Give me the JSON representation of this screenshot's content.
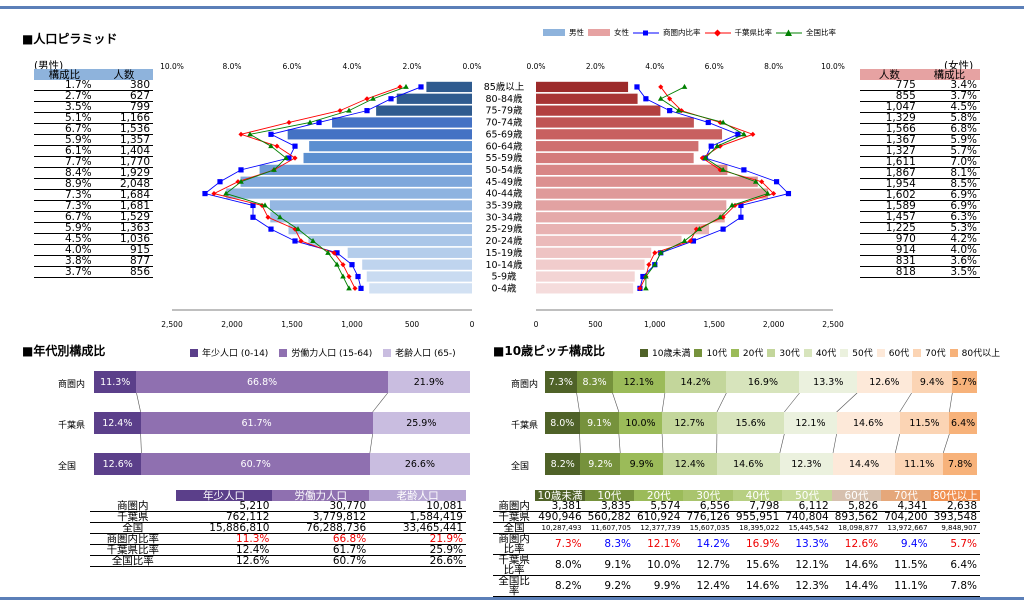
{
  "pyramid": {
    "title": "■人口ピラミッド",
    "male_label": "(男性)",
    "female_label": "(女性)",
    "male_cols": [
      "構成比",
      "人数"
    ],
    "female_cols": [
      "人数",
      "構成比"
    ],
    "legend": [
      "男性",
      "女性",
      "商圏内比率",
      "千葉県比率",
      "全国比率"
    ],
    "ages": [
      "85歳以上",
      "80-84歳",
      "75-79歳",
      "70-74歳",
      "65-69歳",
      "60-64歳",
      "55-59歳",
      "50-54歳",
      "45-49歳",
      "40-44歳",
      "35-39歳",
      "30-34歳",
      "25-29歳",
      "20-24歳",
      "15-19歳",
      "10-14歳",
      "5-9歳",
      "0-4歳"
    ],
    "male_ratio": [
      "1.7%",
      "2.7%",
      "3.5%",
      "5.1%",
      "6.7%",
      "5.9%",
      "6.1%",
      "7.7%",
      "8.4%",
      "8.9%",
      "7.3%",
      "7.3%",
      "6.7%",
      "5.9%",
      "4.5%",
      "4.0%",
      "3.8%",
      "3.7%"
    ],
    "male_count": [
      "380",
      "627",
      "799",
      "1,166",
      "1,536",
      "1,357",
      "1,404",
      "1,770",
      "1,929",
      "2,048",
      "1,684",
      "1,681",
      "1,529",
      "1,363",
      "1,036",
      "915",
      "877",
      "856"
    ],
    "female_count": [
      "775",
      "855",
      "1,047",
      "1,329",
      "1,566",
      "1,367",
      "1,327",
      "1,611",
      "1,867",
      "1,954",
      "1,602",
      "1,589",
      "1,457",
      "1,225",
      "970",
      "914",
      "831",
      "818"
    ],
    "female_ratio": [
      "3.4%",
      "3.7%",
      "4.5%",
      "5.8%",
      "6.8%",
      "5.9%",
      "5.7%",
      "7.0%",
      "8.1%",
      "8.5%",
      "6.9%",
      "6.9%",
      "6.3%",
      "5.3%",
      "4.2%",
      "4.0%",
      "3.6%",
      "3.5%"
    ],
    "top_ticks_left": [
      "10.0%",
      "8.0%",
      "6.0%",
      "4.0%",
      "2.0%",
      "0.0%"
    ],
    "top_ticks_right": [
      "0.0%",
      "2.0%",
      "4.0%",
      "6.0%",
      "8.0%",
      "10.0%"
    ],
    "bottom_ticks_left": [
      "2,500",
      "2,000",
      "1,500",
      "1,000",
      "500",
      "0"
    ],
    "bottom_ticks_right": [
      "0",
      "500",
      "1,000",
      "1,500",
      "2,000",
      "2,500"
    ]
  },
  "chart_data": [
    {
      "type": "bar",
      "title": "人口ピラミッド 男性",
      "categories": [
        "85歳以上",
        "80-84歳",
        "75-79歳",
        "70-74歳",
        "65-69歳",
        "60-64歳",
        "55-59歳",
        "50-54歳",
        "45-49歳",
        "40-44歳",
        "35-39歳",
        "30-34歳",
        "25-29歳",
        "20-24歳",
        "15-19歳",
        "10-14歳",
        "5-9歳",
        "0-4歳"
      ],
      "series": [
        {
          "name": "男性",
          "values": [
            380,
            627,
            799,
            1166,
            1536,
            1357,
            1404,
            1770,
            1929,
            2048,
            1684,
            1681,
            1529,
            1363,
            1036,
            915,
            877,
            856
          ]
        },
        {
          "name": "商圏内比率",
          "values": [
            1.7,
            2.7,
            3.5,
            5.1,
            6.7,
            5.9,
            6.1,
            7.7,
            8.4,
            8.9,
            7.3,
            7.3,
            6.7,
            5.9,
            4.5,
            4.0,
            3.8,
            3.7
          ]
        },
        {
          "name": "千葉県比率",
          "values": [
            2.4,
            3.5,
            4.4,
            6.1,
            7.7,
            6.5,
            5.9,
            6.6,
            7.8,
            8.6,
            7.0,
            6.8,
            5.9,
            5.7,
            4.6,
            4.3,
            4.1,
            3.9
          ]
        },
        {
          "name": "全国比率",
          "values": [
            2.2,
            3.3,
            4.1,
            5.4,
            7.4,
            6.7,
            6.2,
            6.6,
            7.7,
            8.2,
            6.9,
            6.4,
            5.8,
            5.3,
            4.8,
            4.5,
            4.3,
            4.1
          ]
        }
      ],
      "xlim": [
        2500,
        0
      ]
    },
    {
      "type": "bar",
      "title": "人口ピラミッド 女性",
      "categories": [
        "85歳以上",
        "80-84歳",
        "75-79歳",
        "70-74歳",
        "65-69歳",
        "60-64歳",
        "55-59歳",
        "50-54歳",
        "45-49歳",
        "40-44歳",
        "35-39歳",
        "30-34歳",
        "25-29歳",
        "20-24歳",
        "15-19歳",
        "10-14歳",
        "5-9歳",
        "0-4歳"
      ],
      "series": [
        {
          "name": "女性",
          "values": [
            775,
            855,
            1047,
            1329,
            1566,
            1367,
            1327,
            1611,
            1867,
            1954,
            1602,
            1589,
            1457,
            1225,
            970,
            914,
            831,
            818
          ]
        },
        {
          "name": "商圏内比率",
          "values": [
            3.4,
            3.7,
            4.5,
            5.8,
            6.8,
            5.9,
            5.7,
            7.0,
            8.1,
            8.5,
            6.9,
            6.9,
            6.3,
            5.3,
            4.2,
            4.0,
            3.6,
            3.5
          ]
        },
        {
          "name": "千葉県比率",
          "values": [
            4.2,
            4.5,
            4.9,
            6.2,
            7.3,
            6.2,
            5.6,
            6.2,
            7.6,
            8.0,
            6.7,
            6.3,
            5.4,
            5.2,
            4.0,
            3.8,
            3.7,
            3.5
          ]
        },
        {
          "name": "全国比率",
          "values": [
            5.0,
            4.2,
            4.8,
            6.3,
            7.0,
            6.1,
            5.7,
            6.3,
            7.4,
            7.8,
            6.6,
            6.2,
            5.5,
            5.0,
            4.2,
            4.0,
            3.7,
            3.7
          ]
        }
      ],
      "xlim": [
        0,
        2500
      ]
    },
    {
      "type": "bar",
      "title": "年代別構成比",
      "categories": [
        "商圏内",
        "千葉県",
        "全国"
      ],
      "series": [
        {
          "name": "年少人口(0-14)",
          "values": [
            11.3,
            12.4,
            12.6
          ]
        },
        {
          "name": "労働力人口(15-64)",
          "values": [
            66.8,
            61.7,
            60.7
          ]
        },
        {
          "name": "老齢人口(65-)",
          "values": [
            21.9,
            25.9,
            26.6
          ]
        }
      ]
    },
    {
      "type": "bar",
      "title": "10歳ピッチ構成比",
      "categories": [
        "商圏内",
        "千葉県",
        "全国"
      ],
      "series": [
        {
          "name": "10歳未満",
          "values": [
            7.3,
            8.0,
            8.2
          ]
        },
        {
          "name": "10代",
          "values": [
            8.3,
            9.1,
            9.2
          ]
        },
        {
          "name": "20代",
          "values": [
            12.1,
            10.0,
            9.9
          ]
        },
        {
          "name": "30代",
          "values": [
            14.2,
            12.7,
            12.4
          ]
        },
        {
          "name": "40代",
          "values": [
            16.9,
            15.6,
            14.6
          ]
        },
        {
          "name": "50代",
          "values": [
            13.3,
            12.1,
            12.3
          ]
        },
        {
          "name": "60代",
          "values": [
            12.6,
            14.6,
            14.4
          ]
        },
        {
          "name": "70代",
          "values": [
            9.4,
            11.5,
            11.1
          ]
        },
        {
          "name": "80代以上",
          "values": [
            5.7,
            6.4,
            7.8
          ]
        }
      ]
    }
  ],
  "age3": {
    "title": "■年代別構成比",
    "legend": [
      "年少人口 (0-14)",
      "労働力人口 (15-64)",
      "老齢人口 (65-)"
    ],
    "colors": [
      "#5b3f8a",
      "#8f70b0",
      "#c9bde0"
    ],
    "rows": [
      {
        "label": "商圏内",
        "v": [
          "11.3%",
          "66.8%",
          "21.9%"
        ],
        "w": [
          11.3,
          66.8,
          21.9
        ]
      },
      {
        "label": "千葉県",
        "v": [
          "12.4%",
          "61.7%",
          "25.9%"
        ],
        "w": [
          12.4,
          61.7,
          25.9
        ]
      },
      {
        "label": "全国",
        "v": [
          "12.6%",
          "60.7%",
          "26.6%"
        ],
        "w": [
          12.6,
          60.7,
          26.6
        ]
      }
    ],
    "table": {
      "headers": [
        "",
        "年少人口",
        "労働力人口",
        "老齢人口"
      ],
      "rows": [
        [
          "商圏内",
          "5,210",
          "30,770",
          "10,081"
        ],
        [
          "千葉県",
          "762,112",
          "3,779,812",
          "1,584,419"
        ],
        [
          "全国",
          "15,886,810",
          "76,288,736",
          "33,465,441"
        ],
        [
          "商圏内比率",
          "11.3%",
          "66.8%",
          "21.9%"
        ],
        [
          "千葉県比率",
          "12.4%",
          "61.7%",
          "25.9%"
        ],
        [
          "全国比率",
          "12.6%",
          "60.7%",
          "26.6%"
        ]
      ]
    }
  },
  "pitch": {
    "title": "■10歳ピッチ構成比",
    "legend": [
      "10歳未満",
      "10代",
      "20代",
      "30代",
      "40代",
      "50代",
      "60代",
      "70代",
      "80代以上"
    ],
    "colors": [
      "#4f6228",
      "#76923c",
      "#9bbb59",
      "#c3d69b",
      "#d7e4bc",
      "#ebf1de",
      "#fde9d9",
      "#fbd4b4",
      "#f7b27a"
    ],
    "rows": [
      {
        "label": "商圏内",
        "v": [
          "7.3%",
          "8.3%",
          "12.1%",
          "14.2%",
          "16.9%",
          "13.3%",
          "12.6%",
          "9.4%",
          "5.7%"
        ],
        "w": [
          7.3,
          8.3,
          12.1,
          14.2,
          16.9,
          13.3,
          12.6,
          9.4,
          5.7
        ]
      },
      {
        "label": "千葉県",
        "v": [
          "8.0%",
          "9.1%",
          "10.0%",
          "12.7%",
          "15.6%",
          "12.1%",
          "14.6%",
          "11.5%",
          "6.4%"
        ],
        "w": [
          8.0,
          9.1,
          10.0,
          12.7,
          15.6,
          12.1,
          14.6,
          11.5,
          6.4
        ]
      },
      {
        "label": "全国",
        "v": [
          "8.2%",
          "9.2%",
          "9.9%",
          "12.4%",
          "14.6%",
          "12.3%",
          "14.4%",
          "11.1%",
          "7.8%"
        ],
        "w": [
          8.2,
          9.2,
          9.9,
          12.4,
          14.6,
          12.3,
          14.4,
          11.1,
          7.8
        ]
      }
    ],
    "table": {
      "headers": [
        "",
        "10歳未満",
        "10代",
        "20代",
        "30代",
        "40代",
        "50代",
        "60代",
        "70代",
        "80代以上"
      ],
      "rows": [
        [
          "商圏内",
          "3,381",
          "3,835",
          "5,574",
          "6,556",
          "7,798",
          "6,112",
          "5,826",
          "4,341",
          "2,638"
        ],
        [
          "千葉県",
          "490,946",
          "560,282",
          "610,924",
          "776,126",
          "955,951",
          "740,804",
          "893,562",
          "704,200",
          "393,548"
        ],
        [
          "全国",
          "10,287,493",
          "11,607,705",
          "12,377,739",
          "15,607,035",
          "18,395,022",
          "15,445,542",
          "18,098,877",
          "13,972,667",
          "9,848,907"
        ],
        [
          "商圏内比率",
          "7.3%",
          "8.3%",
          "12.1%",
          "14.2%",
          "16.9%",
          "13.3%",
          "12.6%",
          "9.4%",
          "5.7%"
        ],
        [
          "千葉県比率",
          "8.0%",
          "9.1%",
          "10.0%",
          "12.7%",
          "15.6%",
          "12.1%",
          "14.6%",
          "11.5%",
          "6.4%"
        ],
        [
          "全国比率",
          "8.2%",
          "9.2%",
          "9.9%",
          "12.4%",
          "14.6%",
          "12.3%",
          "14.4%",
          "11.1%",
          "7.8%"
        ]
      ]
    }
  }
}
